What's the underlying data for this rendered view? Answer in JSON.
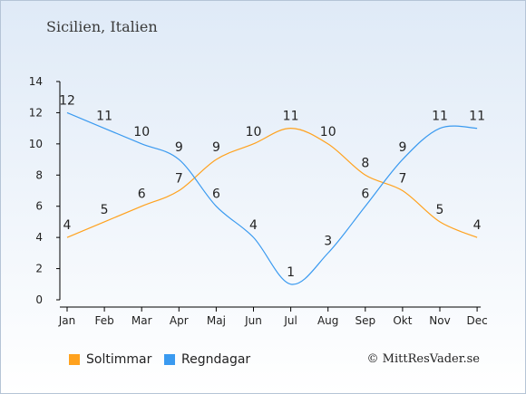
{
  "title": "Sicilien, Italien",
  "credit": "© MittResVader.se",
  "colors": {
    "sun": "#ffa21e",
    "rain": "#3a9af0"
  },
  "chart_data": {
    "type": "line",
    "categories": [
      "Jan",
      "Feb",
      "Mar",
      "Apr",
      "Maj",
      "Jun",
      "Jul",
      "Aug",
      "Sep",
      "Okt",
      "Nov",
      "Dec"
    ],
    "series": [
      {
        "name": "Soltimmar",
        "color": "#ffa21e",
        "values": [
          4,
          5,
          6,
          7,
          9,
          10,
          11,
          10,
          8,
          7,
          5,
          4
        ]
      },
      {
        "name": "Regndagar",
        "color": "#3a9af0",
        "values": [
          12,
          11,
          10,
          9,
          6,
          4,
          1,
          3,
          6,
          9,
          11,
          11
        ]
      }
    ],
    "ylim": [
      0,
      14
    ],
    "yticks": [
      0,
      2,
      4,
      6,
      8,
      10,
      12,
      14
    ],
    "grid": false,
    "legend_position": "bottom-left"
  }
}
